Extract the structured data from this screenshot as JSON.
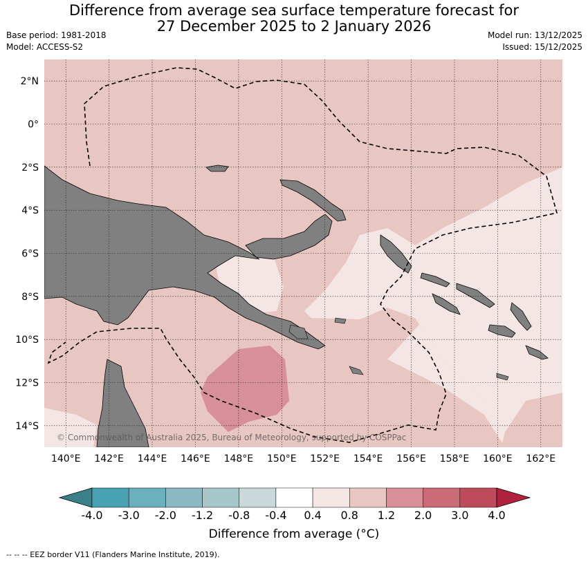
{
  "title": {
    "line1": "Difference from average sea surface temperature forecast for",
    "line2": "27 December 2025 to 2 January 2026"
  },
  "meta": {
    "base_period": "Base period: 1981-2018",
    "model": "Model: ACCESS-S2",
    "model_run": "Model run: 13/12/2025",
    "issued": "Issued: 15/12/2025"
  },
  "map": {
    "lon_range": [
      139,
      163
    ],
    "lat_range": [
      -15,
      3
    ],
    "lon_ticks": [
      "140°E",
      "142°E",
      "144°E",
      "146°E",
      "148°E",
      "150°E",
      "152°E",
      "154°E",
      "156°E",
      "158°E",
      "160°E",
      "162°E"
    ],
    "lat_ticks": [
      "2°N",
      "0°",
      "2°S",
      "4°S",
      "6°S",
      "8°S",
      "10°S",
      "12°S",
      "14°S"
    ],
    "grid": true,
    "land_color": "#808080",
    "copyright": "© Commonwealth of Australia 2025, Bureau of Meteorology, supported by COSPPac"
  },
  "colorbar": {
    "ticks": [
      "-4.0",
      "-3.0",
      "-2.0",
      "-1.2",
      "-0.8",
      "-0.4",
      "0.4",
      "0.8",
      "1.2",
      "2.0",
      "3.0",
      "4.0"
    ],
    "colors": [
      "#3a7f89",
      "#48a1b3",
      "#6cafbf",
      "#8ab8c3",
      "#a7c7cb",
      "#cad8da",
      "#ffffff",
      "#f4e6e4",
      "#e8c6c2",
      "#d78f98",
      "#c96a75",
      "#be4b5a",
      "#b22040"
    ],
    "label": "Difference from average (°C)"
  },
  "footnote": "--  --  -- EEZ border V11 (Flanders Marine Institute, 2019)."
}
